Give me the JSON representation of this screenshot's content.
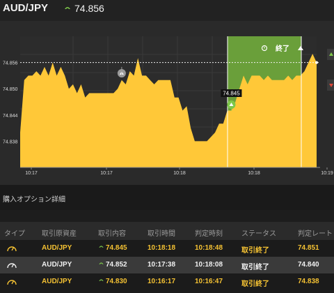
{
  "header": {
    "pair": "AUD/JPY",
    "price": "74.856",
    "trend_icon": "up-arrow-icon",
    "up_color": "#7ec84a"
  },
  "chart_data": {
    "type": "area",
    "series": [
      {
        "values": [
          74.84,
          74.852,
          74.853,
          74.853,
          74.854,
          74.853,
          74.855,
          74.853,
          74.856,
          74.853,
          74.855,
          74.853,
          74.85,
          74.851,
          74.849,
          74.851,
          74.848,
          74.849,
          74.849,
          74.849,
          74.849,
          74.849,
          74.849,
          74.849,
          74.85,
          74.852,
          74.851,
          74.854,
          74.853,
          74.857,
          74.853,
          74.853,
          74.852,
          74.851,
          74.852,
          74.852,
          74.852,
          74.852,
          74.848,
          74.848,
          74.845,
          74.846,
          74.841,
          74.838,
          74.838,
          74.838,
          74.838,
          74.839,
          74.84,
          74.842,
          74.842,
          74.845,
          74.845,
          74.847,
          74.85,
          74.853,
          74.851,
          74.853,
          74.853,
          74.853,
          74.852,
          74.853,
          74.852,
          74.852,
          74.852,
          74.852,
          74.853,
          74.852,
          74.853,
          74.853,
          74.854,
          74.856,
          74.858,
          74.856
        ]
      }
    ],
    "x_ticks": [
      "10:17",
      "10:17",
      "10:18",
      "10:18",
      "10:19"
    ],
    "y_ticks": [
      "74.856",
      "74.850",
      "74.844",
      "74.838"
    ],
    "ylim": [
      74.832,
      74.862
    ],
    "current_level": 74.856,
    "markers": [
      {
        "label": "",
        "index": 25,
        "kind": "grey-up",
        "y": 74.855
      },
      {
        "label": "74.845",
        "index": 52,
        "kind": "green-up",
        "y": 74.845
      }
    ],
    "period_label": "終了",
    "area_color": "#ffc838",
    "period_color": "#6a9f3a",
    "grid": true
  },
  "section": {
    "title": "購入オプション詳細"
  },
  "table": {
    "columns": [
      "タイプ",
      "取引原資産",
      "取引内容",
      "取引時間",
      "判定時刻",
      "ステータス",
      "判定レート"
    ],
    "rows": [
      {
        "asset": "AUD/JPY",
        "direction_icon": "up-arrow-icon",
        "content": "74.845",
        "time": "10:18:18",
        "judge_time": "10:18:48",
        "status": "取引終了",
        "rate": "74.851"
      },
      {
        "asset": "AUD/JPY",
        "direction_icon": "up-arrow-icon",
        "content": "74.852",
        "time": "10:17:38",
        "judge_time": "10:18:08",
        "status": "取引終了",
        "rate": "74.840"
      },
      {
        "asset": "AUD/JPY",
        "direction_icon": "up-arrow-icon",
        "content": "74.830",
        "time": "10:16:17",
        "judge_time": "10:16:47",
        "status": "取引終了",
        "rate": "74.838"
      }
    ]
  }
}
